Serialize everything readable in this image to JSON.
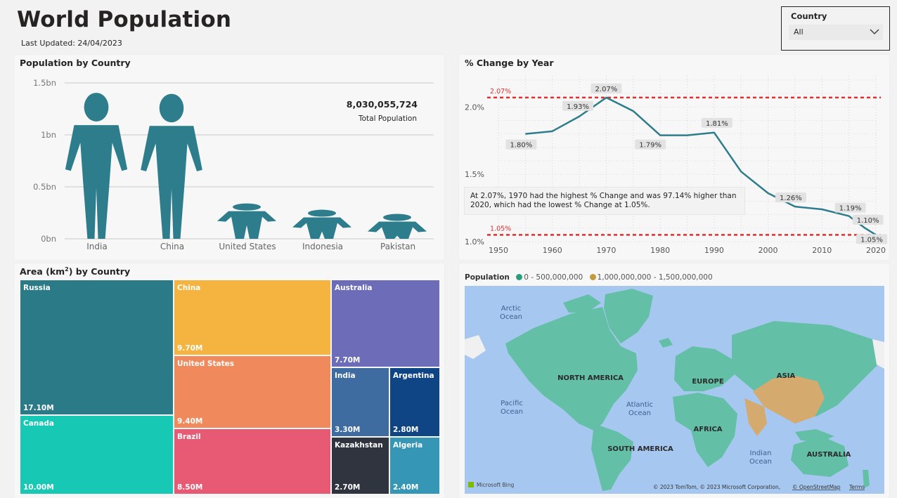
{
  "header": {
    "title": "World Population",
    "last_updated": "Last Updated: 24/04/2023"
  },
  "slicer": {
    "label": "Country",
    "value": "All"
  },
  "population_chart": {
    "title": "Population by Country",
    "total_value": "8,030,055,724",
    "total_label": "Total Population",
    "y_ticks": [
      "0bn",
      "0.5bn",
      "1bn",
      "1.5bn"
    ]
  },
  "change_chart": {
    "title": "% Change by Year",
    "max_ref_label": "2.07%",
    "min_ref_label": "1.05%",
    "insight": "At 2.07%, 1970 had the highest %  Change and was 97.14% higher than 2020, which had the lowest %  Change at 1.05%.",
    "y_ticks": [
      "1.0%",
      "1.5%",
      "2.0%"
    ],
    "x_ticks": [
      "1950",
      "1960",
      "1970",
      "1980",
      "1990",
      "2000",
      "2010",
      "2020"
    ]
  },
  "treemap": {
    "title_prefix": "Area (km",
    "title_suffix": ") by Country",
    "title_sup": "2"
  },
  "map": {
    "legend_title": "Population",
    "legend_a": "0 - 500,000,000",
    "legend_b": "1,000,000,000 - 1,500,000,000",
    "labels": {
      "arctic_1": "Arctic",
      "arctic_2": "Ocean",
      "north_america": "NORTH AMERICA",
      "europe": "EUROPE",
      "asia": "ASIA",
      "africa": "AFRICA",
      "south_america": "SOUTH AMERICA",
      "australia": "AUSTRALIA",
      "pacific_1": "Pacific",
      "pacific_2": "Ocean",
      "atlantic_1": "Atlantic",
      "atlantic_2": "Ocean",
      "indian_1": "Indian",
      "indian_2": "Ocean"
    },
    "bing": "Microsoft Bing",
    "attribution": "© 2023 TomTom, © 2023 Microsoft Corporation,",
    "osm": "© OpenStreetMap",
    "terms": "Terms",
    "colors": {
      "ocean": "#a6c8f0",
      "low": "#63bfa5",
      "high": "#d4aa6e",
      "other": "#f0f0f0"
    }
  },
  "chart_data": [
    {
      "type": "bar",
      "title": "Population by Country",
      "categories": [
        "India",
        "China",
        "United States",
        "Indonesia",
        "Pakistan"
      ],
      "values": [
        1.42,
        1.41,
        0.34,
        0.28,
        0.24
      ],
      "unit": "bn",
      "ylim": [
        0,
        1.5
      ],
      "color": "#2e7d8c"
    },
    {
      "type": "line",
      "title": "% Change by Year",
      "x": [
        1955,
        1960,
        1965,
        1970,
        1975,
        1980,
        1985,
        1990,
        1995,
        2000,
        2005,
        2010,
        2015,
        2018,
        2020
      ],
      "y": [
        1.8,
        1.82,
        1.93,
        2.07,
        1.97,
        1.79,
        1.79,
        1.81,
        1.52,
        1.36,
        1.26,
        1.24,
        1.19,
        1.1,
        1.05
      ],
      "data_labels": [
        {
          "x": 1955,
          "y": 1.8,
          "text": "1.80%"
        },
        {
          "x": 1965,
          "y": 1.93,
          "text": "1.93%"
        },
        {
          "x": 1970,
          "y": 2.07,
          "text": "2.07%"
        },
        {
          "x": 1980,
          "y": 1.79,
          "text": "1.79%"
        },
        {
          "x": 1990,
          "y": 1.81,
          "text": "1.81%"
        },
        {
          "x": 2005,
          "y": 1.26,
          "text": "1.26%"
        },
        {
          "x": 2015,
          "y": 1.19,
          "text": "1.19%"
        },
        {
          "x": 2018,
          "y": 1.1,
          "text": "1.10%"
        },
        {
          "x": 2020,
          "y": 1.05,
          "text": "1.05%"
        }
      ],
      "reference_lines": [
        2.07,
        1.05
      ],
      "xlim": [
        1950,
        2020
      ],
      "ylim": [
        1.0,
        2.2
      ],
      "grid": true,
      "color": "#2e7d8c",
      "reference_color": "#e03030"
    },
    {
      "type": "treemap",
      "title": "Area (km²) by Country",
      "items": [
        {
          "name": "Russia",
          "label": "17.10M",
          "value": 17.1,
          "color": "#2a7b87"
        },
        {
          "name": "Canada",
          "label": "10.00M",
          "value": 10.0,
          "color": "#17c9b4"
        },
        {
          "name": "China",
          "label": "9.70M",
          "value": 9.7,
          "color": "#f5b43f"
        },
        {
          "name": "United States",
          "label": "9.40M",
          "value": 9.4,
          "color": "#f08a5d"
        },
        {
          "name": "Brazil",
          "label": "8.50M",
          "value": 8.5,
          "color": "#e85a74"
        },
        {
          "name": "Australia",
          "label": "7.70M",
          "value": 7.7,
          "color": "#6c6cb8"
        },
        {
          "name": "India",
          "label": "3.30M",
          "value": 3.3,
          "color": "#3e6ba0"
        },
        {
          "name": "Argentina",
          "label": "2.80M",
          "value": 2.8,
          "color": "#104585"
        },
        {
          "name": "Kazakhstan",
          "label": "2.70M",
          "value": 2.7,
          "color": "#30343f"
        },
        {
          "name": "Algeria",
          "label": "2.40M",
          "value": 2.4,
          "color": "#3597b5"
        }
      ]
    }
  ]
}
